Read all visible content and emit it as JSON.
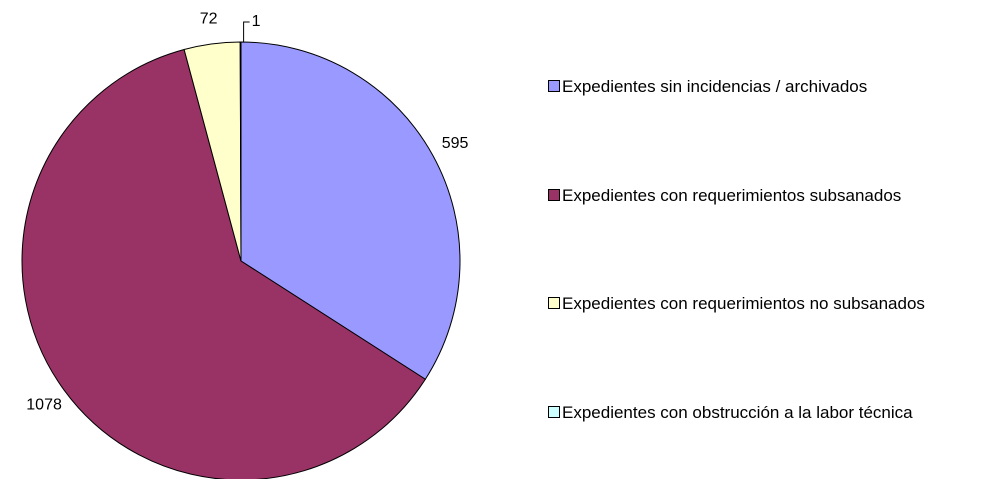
{
  "chart_data": {
    "type": "pie",
    "categories": [
      "Expedientes sin incidencias / archivados",
      "Expedientes con requerimientos subsanados",
      "Expedientes con requerimientos no subsanados",
      "Expedientes con obstrucción a la labor técnica"
    ],
    "values": [
      595,
      1078,
      72,
      1
    ],
    "colors": [
      "#9999ff",
      "#993366",
      "#ffffcc",
      "#ccffff"
    ],
    "legend": "right"
  }
}
